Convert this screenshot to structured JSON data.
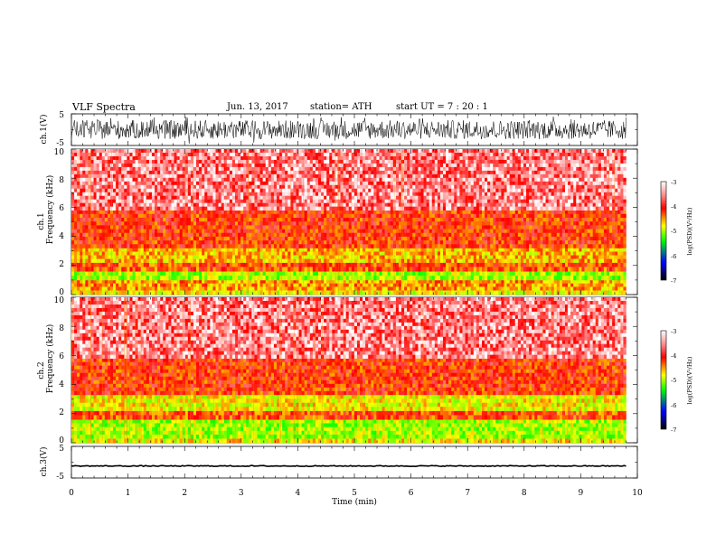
{
  "header": {
    "title": "VLF  Spectra",
    "date": "Jun. 13, 2017",
    "station": "station= ATH",
    "start": "start  UT  =    7  : 20 : 1"
  },
  "colors": {
    "colormap": [
      "#000000",
      "#0000ff",
      "#00ff00",
      "#ffff00",
      "#ff0000",
      "#ffffff"
    ],
    "trace": "#000000"
  },
  "chart_data": [
    {
      "type": "line",
      "panel": "ch1-waveform",
      "ylabel": "ch.1(V)",
      "yticks": [
        "5",
        "-5"
      ],
      "ylim": [
        -5,
        5
      ],
      "xlim": [
        0,
        10
      ],
      "data_extent_min": [
        0,
        9.8
      ],
      "series": [
        {
          "name": "ch.1",
          "envelope_v": [
            -3,
            3
          ],
          "style": "noisy, dense"
        }
      ]
    },
    {
      "type": "heatmap",
      "panel": "ch1-spectrogram",
      "ylabel": [
        "ch.1",
        "Frequency  (kHz)"
      ],
      "yticks": [
        "0",
        "2",
        "4",
        "6",
        "8",
        "10"
      ],
      "ylim": [
        0,
        10
      ],
      "xlim": [
        0,
        10
      ],
      "data_extent_min": [
        0,
        9.8
      ],
      "colorbar": {
        "label": "log(PSD)(V²/Hz)",
        "ticks": [
          "-3",
          "-4",
          "-5",
          "-6",
          "-7"
        ],
        "range": [
          -7,
          -3
        ]
      },
      "bands_khz_logpsd": [
        {
          "from": 0.0,
          "to": 0.3,
          "value": -4.6
        },
        {
          "from": 0.3,
          "to": 1.0,
          "value": -4.3
        },
        {
          "from": 1.0,
          "to": 1.6,
          "value": -4.9
        },
        {
          "from": 1.6,
          "to": 2.2,
          "value": -4.0
        },
        {
          "from": 2.2,
          "to": 3.2,
          "value": -4.4
        },
        {
          "from": 3.2,
          "to": 5.8,
          "value": -3.9
        },
        {
          "from": 5.8,
          "to": 10.0,
          "value": -3.4
        }
      ]
    },
    {
      "type": "heatmap",
      "panel": "ch2-spectrogram",
      "ylabel": [
        "ch.2",
        "Frequency  (kHz)"
      ],
      "yticks": [
        "0",
        "2",
        "4",
        "6",
        "8",
        "10"
      ],
      "ylim": [
        0,
        10
      ],
      "xlim": [
        0,
        10
      ],
      "data_extent_min": [
        0,
        9.8
      ],
      "colorbar": {
        "label": "log(PSD)(V²/Hz)",
        "ticks": [
          "-3",
          "-4",
          "-5",
          "-6",
          "-7"
        ],
        "range": [
          -7,
          -3
        ]
      },
      "bands_khz_logpsd": [
        {
          "from": 0.0,
          "to": 0.3,
          "value": -4.6
        },
        {
          "from": 0.3,
          "to": 1.6,
          "value": -4.9
        },
        {
          "from": 1.6,
          "to": 2.2,
          "value": -4.0
        },
        {
          "from": 2.2,
          "to": 3.3,
          "value": -4.6
        },
        {
          "from": 3.3,
          "to": 5.8,
          "value": -3.9
        },
        {
          "from": 5.8,
          "to": 10.0,
          "value": -3.4
        }
      ]
    },
    {
      "type": "line",
      "panel": "ch3-waveform",
      "ylabel": "ch.3(V)",
      "yticks": [
        "5",
        "-5"
      ],
      "ylim": [
        -5,
        5
      ],
      "xlim": [
        0,
        10
      ],
      "data_extent_min": [
        0,
        9.8
      ],
      "xlabel": "Time  (min)",
      "xticks": [
        "0",
        "1",
        "2",
        "3",
        "4",
        "5",
        "6",
        "7",
        "8",
        "9",
        "10"
      ],
      "series": [
        {
          "name": "ch.3",
          "level_v": -1.2,
          "envelope_v": [
            -1.5,
            -0.9
          ],
          "style": "flat"
        }
      ]
    }
  ]
}
